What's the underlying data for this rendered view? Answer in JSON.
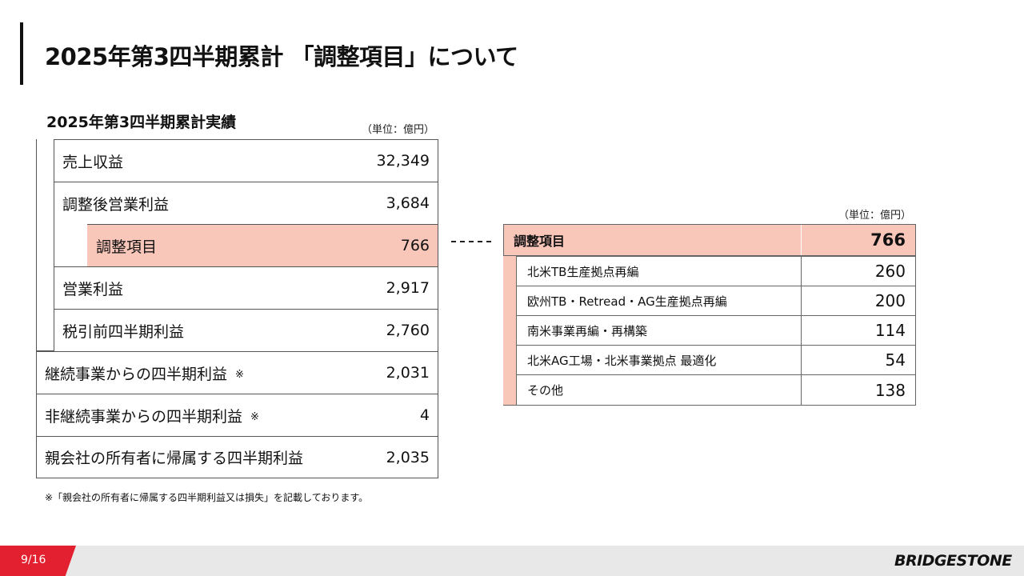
{
  "header": {
    "title": "2025年第3四半期累計 「調整項目」について"
  },
  "results": {
    "title": "2025年第3四半期累計実績",
    "unit": "（単位：億円）",
    "rows": [
      {
        "label": "売上収益",
        "value": "32,349"
      },
      {
        "label": "調整後営業利益",
        "value": "3,684"
      },
      {
        "label": "調整項目",
        "value": "766"
      },
      {
        "label": "営業利益",
        "value": "2,917"
      },
      {
        "label": "税引前四半期利益",
        "value": "2,760"
      },
      {
        "label": "継続事業からの四半期利益",
        "note_mark": "※",
        "value": "2,031"
      },
      {
        "label": "非継続事業からの四半期利益",
        "note_mark": "※",
        "value": "4"
      },
      {
        "label": "親会社の所有者に帰属する四半期利益",
        "value": "2,035"
      }
    ]
  },
  "adjustments": {
    "unit": "（単位：億円）",
    "header": {
      "label": "調整項目",
      "value": "766"
    },
    "rows": [
      {
        "label": "北米TB生産拠点再編",
        "value": "260"
      },
      {
        "label": "欧州TB・Retread・AG生産拠点再編",
        "value": "200"
      },
      {
        "label": "南米事業再編・再構築",
        "value": "114"
      },
      {
        "label": "北米AG工場・北米事業拠点 最適化",
        "value": "54"
      },
      {
        "label": "その他",
        "value": "138"
      }
    ]
  },
  "footnote": "※「親会社の所有者に帰属する四半期利益又は損失」を記載しております。",
  "footer": {
    "page": "9/16",
    "logo": "BRIDGESTONE",
    "accent_color": "#e2202f",
    "highlight_color": "#f9c6ba"
  }
}
